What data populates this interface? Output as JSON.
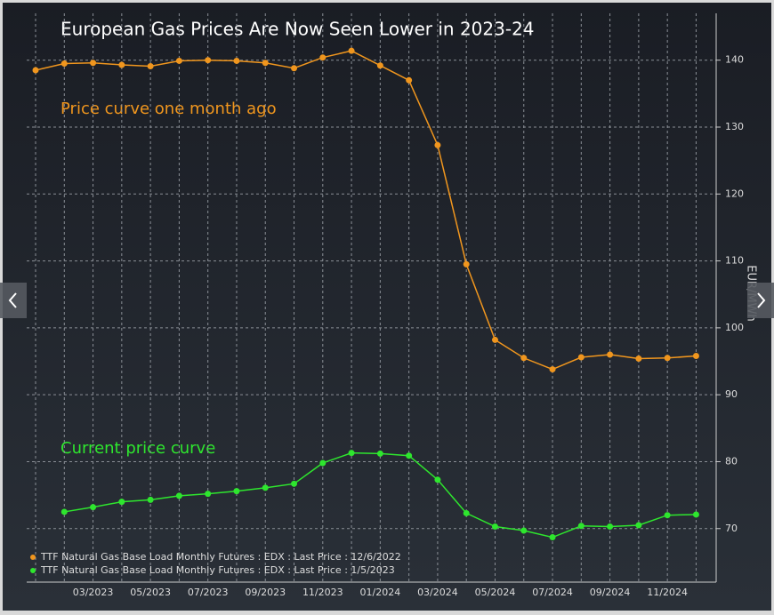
{
  "chart_data": {
    "type": "line",
    "title": "European Gas Prices Are Now Seen Lower in 2023-24",
    "y_label": "EUR/MWh",
    "annotations": [
      "Price curve one month ago",
      "Current price curve"
    ],
    "categories": [
      null,
      null,
      "03/2023",
      null,
      "05/2023",
      null,
      "07/2023",
      null,
      "09/2023",
      null,
      "11/2023",
      null,
      "01/2024",
      null,
      "03/2024",
      null,
      "05/2024",
      null,
      "07/2024",
      null,
      "09/2024",
      null,
      "11/2024",
      null
    ],
    "series": [
      {
        "name": "TTF Natural Gas Base Load Monthly Futures : EDX : Last Price : 12/6/2022",
        "color": "#f0961e",
        "values": [
          138.5,
          139.5,
          139.6,
          139.3,
          139.1,
          139.9,
          140.0,
          139.9,
          139.6,
          138.8,
          140.4,
          141.4,
          139.2,
          137.0,
          127.3,
          109.5,
          98.2,
          95.5,
          93.8,
          95.6,
          96.0,
          95.4,
          95.5,
          95.8
        ]
      },
      {
        "name": "TTF Natural Gas Base Load Monthly Futures : EDX : Last Price : 1/5/2023",
        "color": "#2ee62e",
        "values": [
          null,
          72.5,
          73.2,
          74.0,
          74.3,
          74.9,
          75.2,
          75.6,
          76.1,
          76.7,
          79.8,
          81.3,
          81.2,
          80.9,
          77.3,
          72.3,
          70.3,
          69.7,
          68.7,
          70.4,
          70.3,
          70.5,
          72.0,
          72.1
        ]
      }
    ],
    "ylim": [
      62,
      147
    ],
    "yticks": [
      70,
      80,
      90,
      100,
      110,
      120,
      130,
      140
    ],
    "grid": true
  }
}
